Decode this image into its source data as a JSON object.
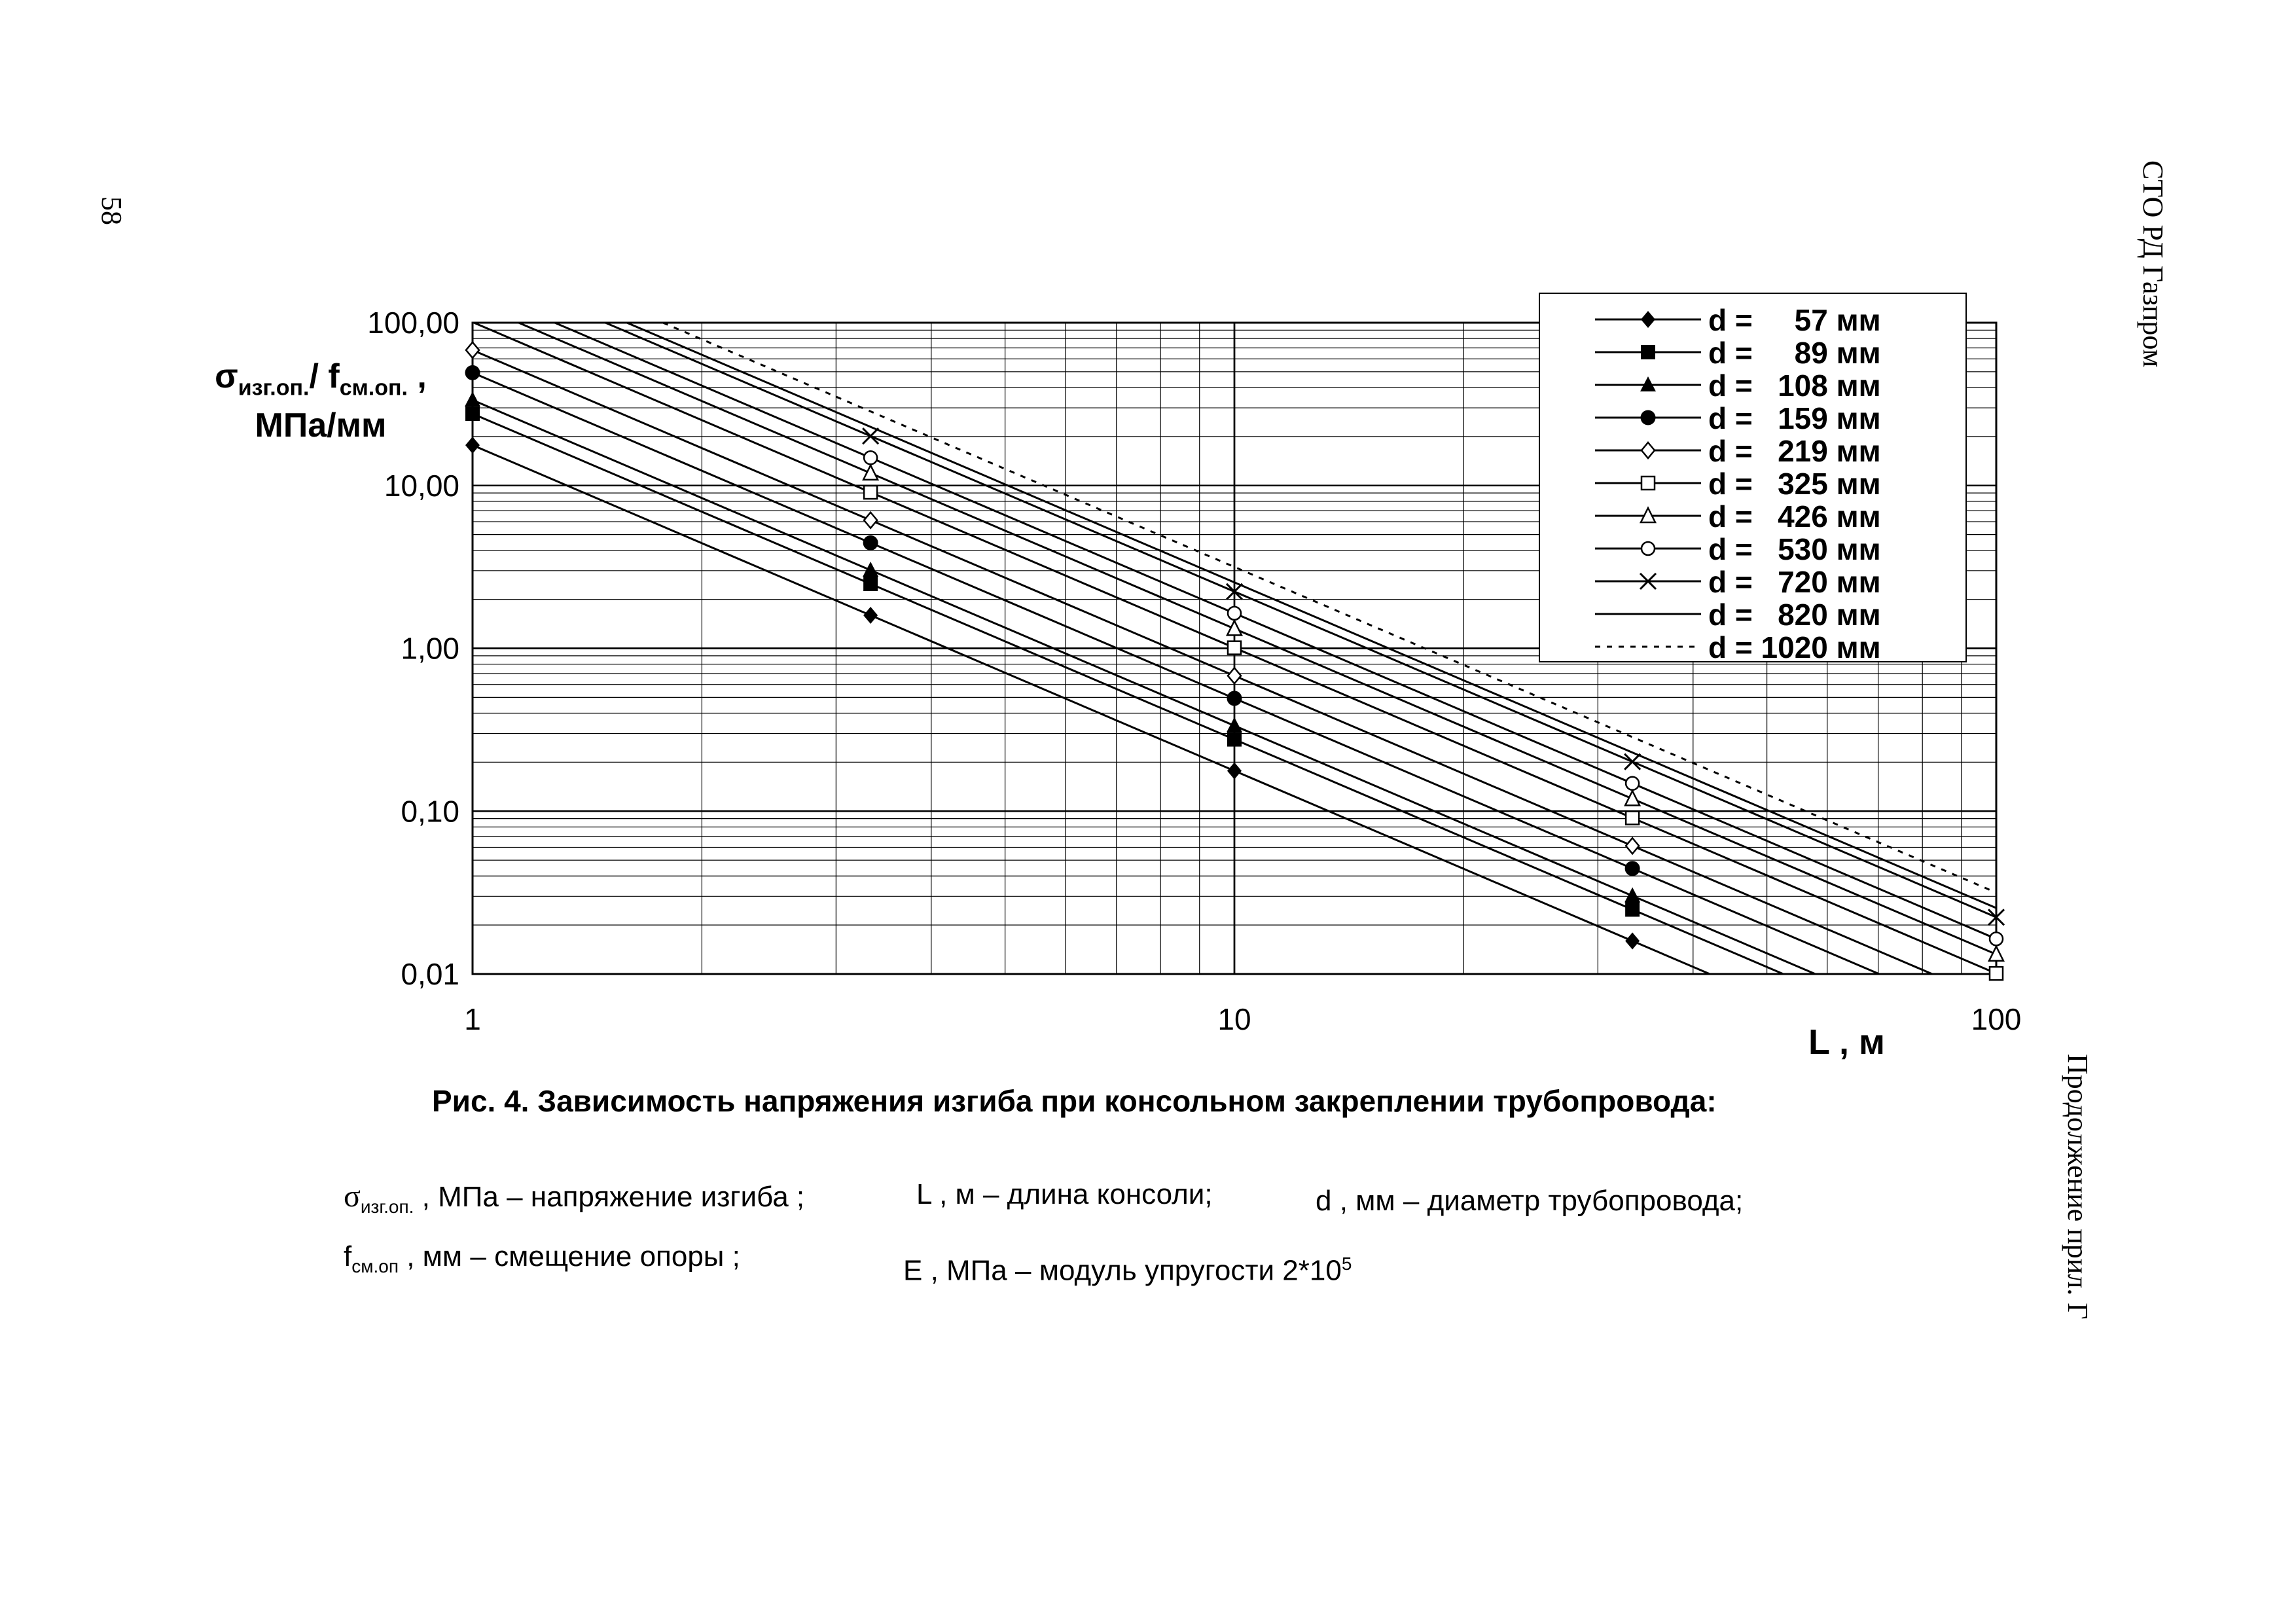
{
  "page_number": "58",
  "header_right": "СТО РД Газпром",
  "footer_right": "Продолжение прил. Г",
  "chart_data": {
    "type": "line",
    "xscale": "log",
    "yscale": "log",
    "xlim": [
      1,
      100
    ],
    "ylim": [
      0.01,
      100
    ],
    "x_tick_labels": [
      "1",
      "10",
      "100"
    ],
    "y_tick_labels": [
      "0,01",
      "0,10",
      "1,00",
      "10,00",
      "100,00"
    ],
    "xlabel": "L , м",
    "ylabel": {
      "line1_symbol": "σ",
      "line1_sub1": "изг.оп.",
      "line1_mid": "/ f",
      "line1_sub2": "см.оп.",
      "line1_tail": " ,",
      "line2": "МПа/мм"
    },
    "grid": true,
    "legend_position": "top-right",
    "marker_x": [
      1,
      3.33,
      10,
      33.3,
      100
    ],
    "series": [
      {
        "name": "d =     57 мм",
        "marker": "diamond-filled",
        "style": "solid",
        "values_at_L1": 17.7
      },
      {
        "name": "d =     89 мм",
        "marker": "square-filled",
        "style": "solid",
        "values_at_L1": 27.6
      },
      {
        "name": "d =   108 мм",
        "marker": "triangle-filled",
        "style": "solid",
        "values_at_L1": 33.5
      },
      {
        "name": "d =   159 мм",
        "marker": "circle-filled",
        "style": "solid",
        "values_at_L1": 49.3
      },
      {
        "name": "d =   219 мм",
        "marker": "diamond-open",
        "style": "solid",
        "values_at_L1": 67.9
      },
      {
        "name": "d =   325 мм",
        "marker": "square-open",
        "style": "solid",
        "values_at_L1": 100.8
      },
      {
        "name": "d =   426 мм",
        "marker": "triangle-open",
        "style": "solid",
        "values_at_L1": 132.1
      },
      {
        "name": "d =   530 мм",
        "marker": "circle-open",
        "style": "solid",
        "values_at_L1": 164.3
      },
      {
        "name": "d =   720 мм",
        "marker": "x",
        "style": "solid",
        "values_at_L1": 223.2
      },
      {
        "name": "d =   820 мм",
        "marker": "none",
        "style": "solid",
        "values_at_L1": 254.2
      },
      {
        "name": "d = 1020 мм",
        "marker": "none",
        "style": "dotted",
        "values_at_L1": 316.2
      }
    ],
    "relation": "value = values_at_L1 / L^2"
  },
  "caption": "Рис. 4.   Зависимость напряжения изгиба при  консольном закреплении трубопровода:",
  "legend_text": {
    "sigma_symbol": "σ",
    "sigma_sub": "изг.оп.",
    "sigma_desc": " , МПа – напряжение изгиба ;",
    "L_desc": "L , м – длина консоли;",
    "d_desc": "d , мм – диаметр трубопровода;",
    "f_symbol": "f",
    "f_sub": "см.оп",
    "f_desc": " , мм –  смещение опоры ;",
    "E_desc": "E , МПа – модуль упругости 2*10",
    "E_sup": "5"
  }
}
